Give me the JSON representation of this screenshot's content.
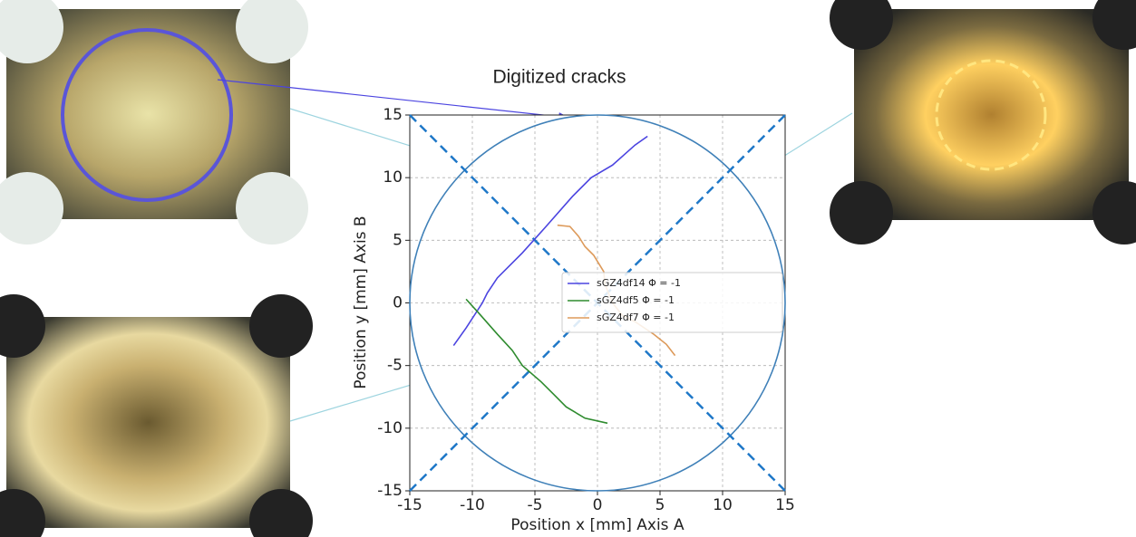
{
  "chart_data": {
    "type": "line",
    "title": "Digitized cracks",
    "x_label": "Position x [mm] Axis A",
    "y_label": "Position y [mm] Axis B",
    "xlim": [
      -15,
      15
    ],
    "ylim": [
      -15,
      15
    ],
    "xticks": [
      -15,
      -10,
      -5,
      0,
      5,
      10,
      15
    ],
    "yticks": [
      -15,
      -10,
      -5,
      0,
      5,
      10,
      15
    ],
    "grid": true,
    "legend": "center right",
    "series": [
      {
        "name": "sGZ4df14 Φ = -1",
        "color": "#4b44e0",
        "x": [
          -11.5,
          -10.5,
          -9.2,
          -8.8,
          -8,
          -6,
          -4.2,
          -2,
          -0.5,
          1.2,
          3,
          4
        ],
        "values": [
          -3.4,
          -2,
          0,
          0.8,
          2,
          4,
          6,
          8.5,
          10,
          11,
          12.6,
          13.3
        ]
      },
      {
        "name": "sGZ4df5 Φ = -1",
        "color": "#2e8b2e",
        "x": [
          -10.5,
          -9.5,
          -8,
          -6.8,
          -6,
          -4.5,
          -3.5,
          -2.5,
          -1,
          0.8
        ],
        "values": [
          0.3,
          -0.8,
          -2.5,
          -3.8,
          -5,
          -6.3,
          -7.3,
          -8.3,
          -9.2,
          -9.6
        ]
      },
      {
        "name": "sGZ4df7 Φ = -1",
        "color": "#dd9a5a",
        "x": [
          -3.2,
          -2.2,
          -1.5,
          -1,
          -0.3,
          0.5,
          0.6,
          1.2,
          2,
          3,
          4.5,
          5.5,
          6.2
        ],
        "values": [
          6.2,
          6.1,
          5.3,
          4.5,
          3.8,
          2.5,
          1.5,
          0,
          -1,
          -1.5,
          -2.5,
          -3.3,
          -4.2
        ]
      }
    ]
  }
}
